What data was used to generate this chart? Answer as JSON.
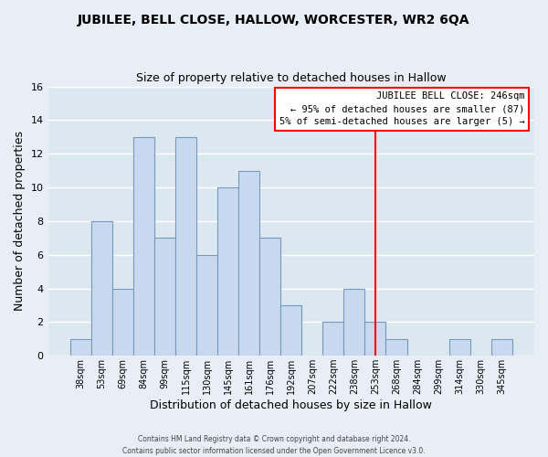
{
  "title1": "JUBILEE, BELL CLOSE, HALLOW, WORCESTER, WR2 6QA",
  "title2": "Size of property relative to detached houses in Hallow",
  "xlabel": "Distribution of detached houses by size in Hallow",
  "ylabel": "Number of detached properties",
  "bar_labels": [
    "38sqm",
    "53sqm",
    "69sqm",
    "84sqm",
    "99sqm",
    "115sqm",
    "130sqm",
    "145sqm",
    "161sqm",
    "176sqm",
    "192sqm",
    "207sqm",
    "222sqm",
    "238sqm",
    "253sqm",
    "268sqm",
    "284sqm",
    "299sqm",
    "314sqm",
    "330sqm",
    "345sqm"
  ],
  "bar_values": [
    1,
    8,
    4,
    13,
    7,
    13,
    6,
    10,
    11,
    7,
    3,
    0,
    2,
    4,
    2,
    1,
    0,
    0,
    1,
    0,
    1
  ],
  "bar_color": "#c8d8ee",
  "bar_edge_color": "#7799bb",
  "ylim": [
    0,
    16
  ],
  "yticks": [
    0,
    2,
    4,
    6,
    8,
    10,
    12,
    14,
    16
  ],
  "property_line_x": 14.0,
  "property_line_label": "JUBILEE BELL CLOSE: 246sqm",
  "annotation_line1": "← 95% of detached houses are smaller (87)",
  "annotation_line2": "5% of semi-detached houses are larger (5) →",
  "footer1": "Contains HM Land Registry data © Crown copyright and database right 2024.",
  "footer2": "Contains public sector information licensed under the Open Government Licence v3.0.",
  "background_color": "#e8eef5",
  "grid_color": "#ffffff",
  "plot_bg_color": "#dce8f0"
}
